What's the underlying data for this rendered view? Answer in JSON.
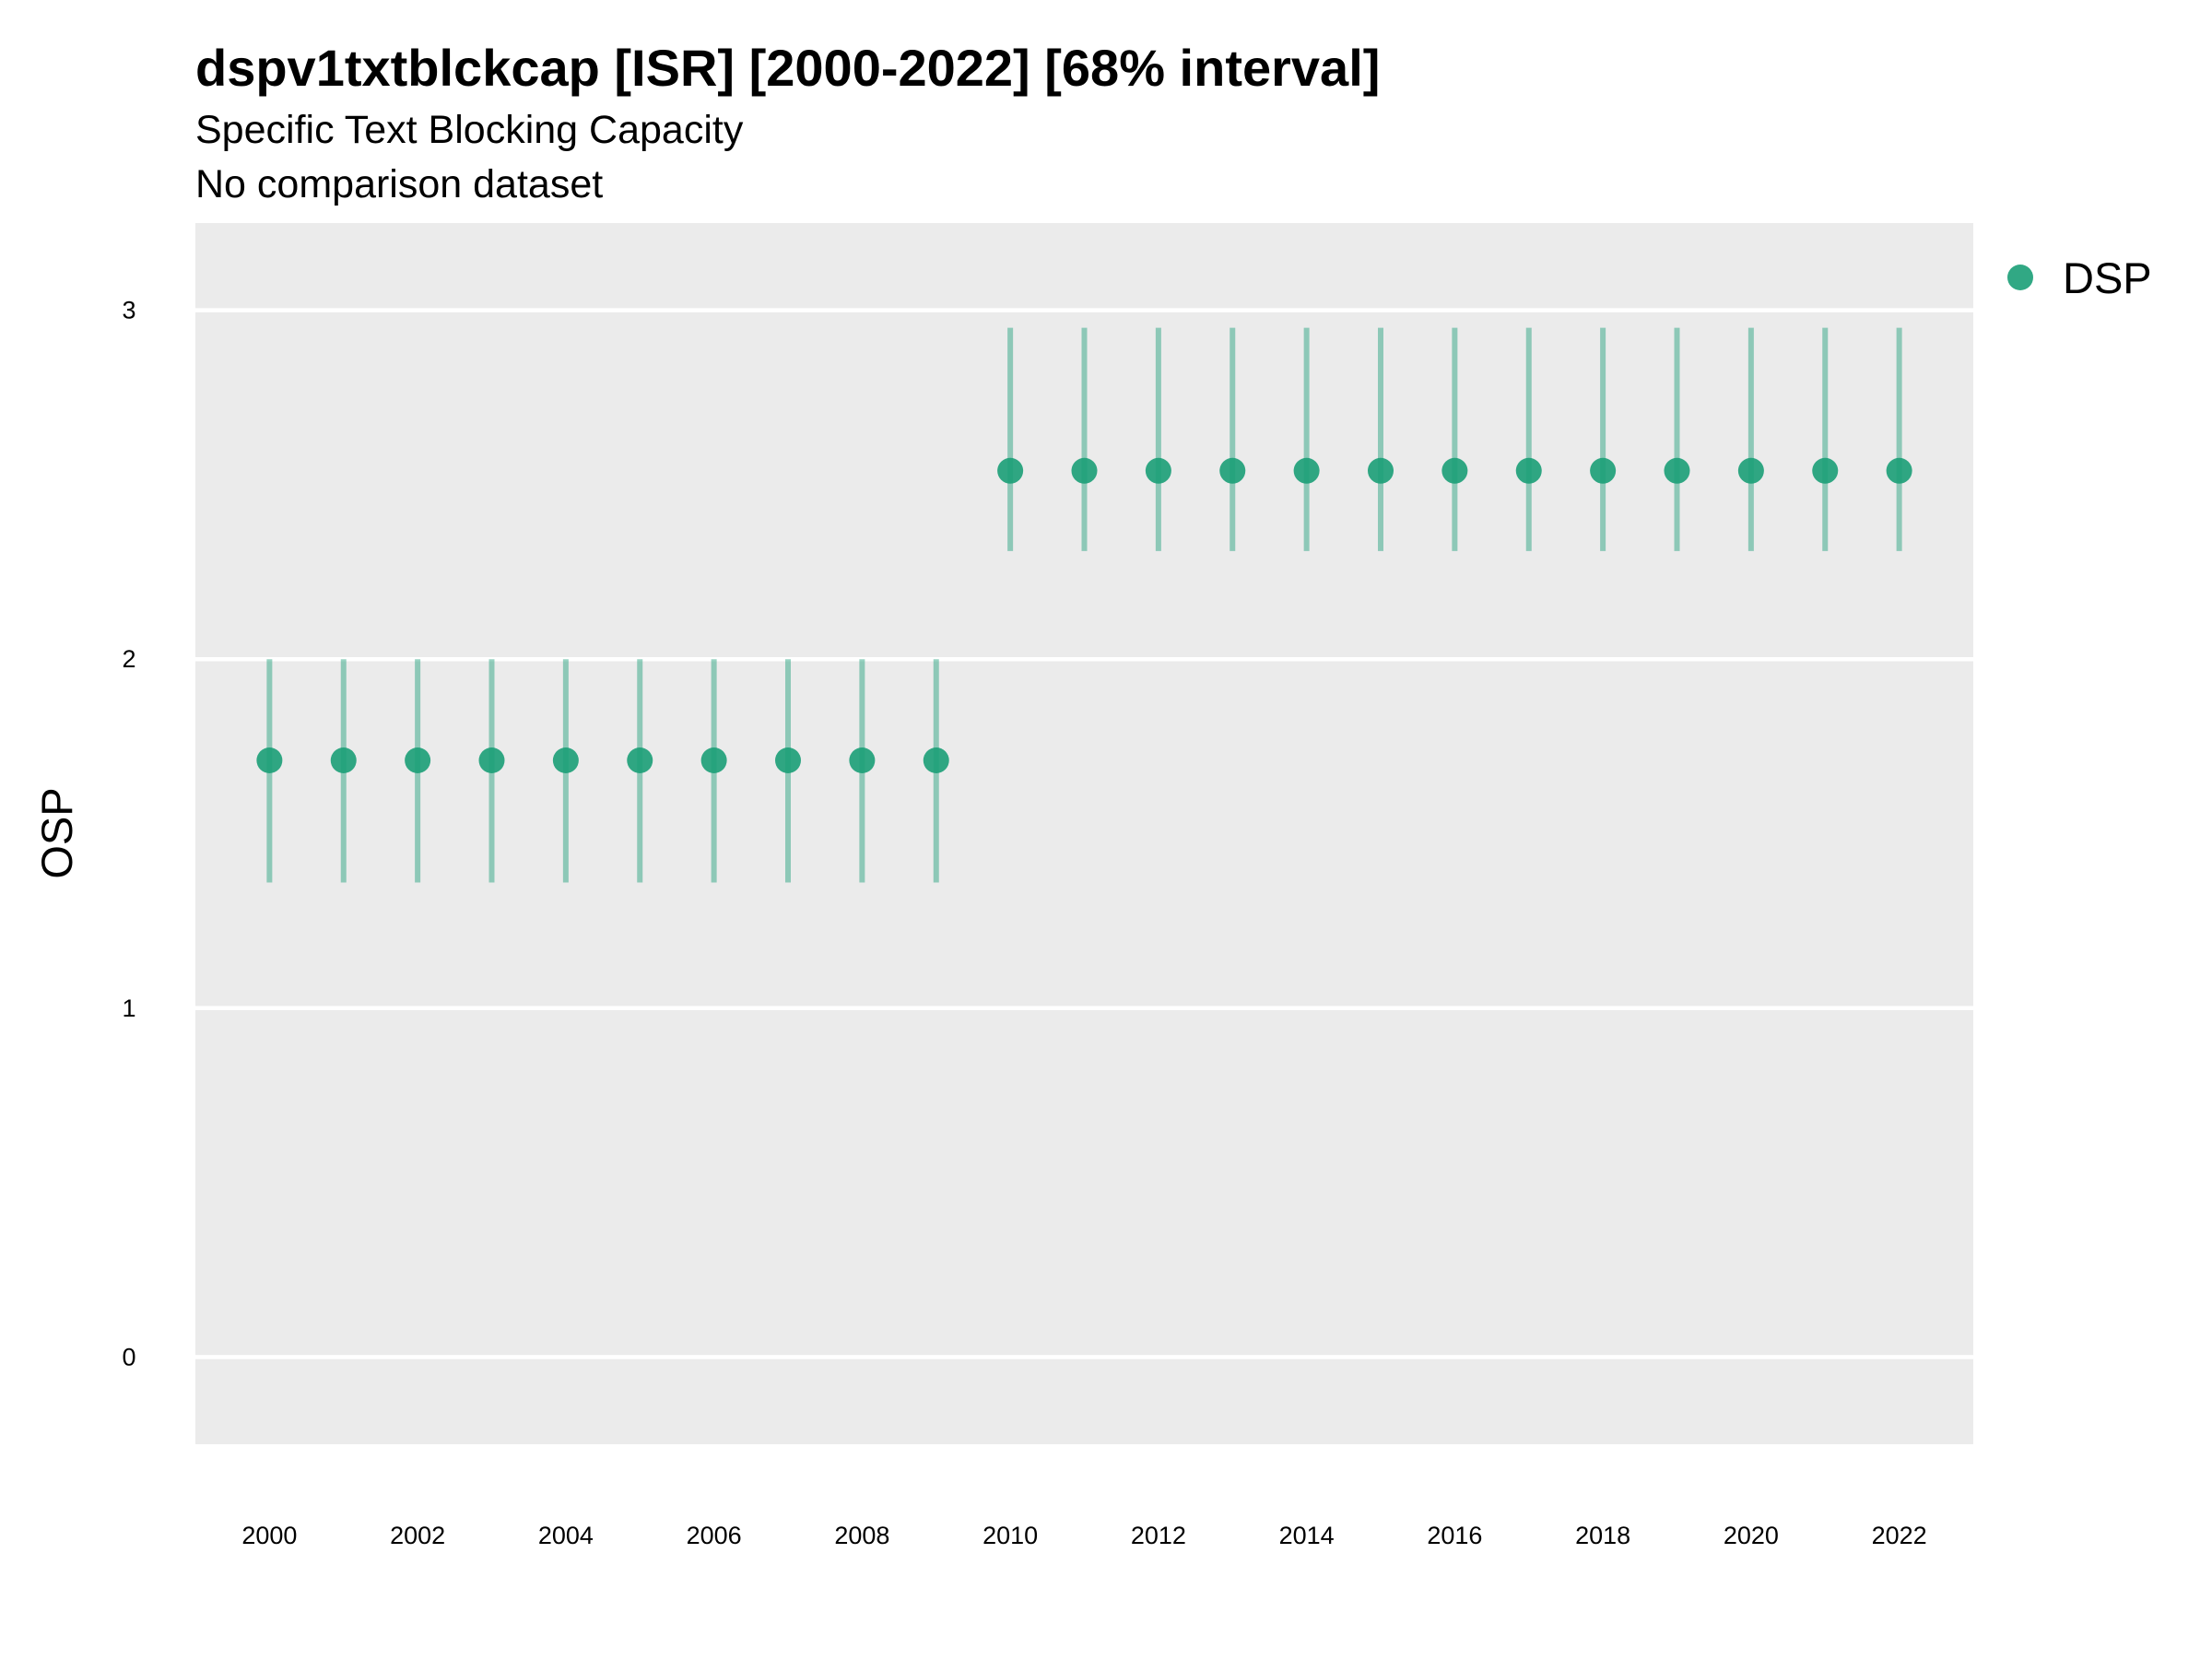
{
  "chart_data": {
    "type": "scatter",
    "title": "dspv1txtblckcap [ISR] [2000-2022] [68% interval]",
    "subtitle": "Specific Text Blocking Capacity",
    "subtitle2": "No comparison dataset",
    "xlabel": "",
    "ylabel": "OSP",
    "xlim": [
      1999,
      2023
    ],
    "ylim": [
      -0.25,
      3.25
    ],
    "x_ticks": [
      2000,
      2002,
      2004,
      2006,
      2008,
      2010,
      2012,
      2014,
      2016,
      2018,
      2020,
      2022
    ],
    "y_ticks": [
      0,
      1,
      2,
      3
    ],
    "grid": true,
    "legend": "right",
    "series": [
      {
        "name": "DSP",
        "color": "#1b9e77",
        "x": [
          2000,
          2001,
          2002,
          2003,
          2004,
          2005,
          2006,
          2007,
          2008,
          2009,
          2010,
          2011,
          2012,
          2013,
          2014,
          2015,
          2016,
          2017,
          2018,
          2019,
          2020,
          2021,
          2022
        ],
        "y": [
          1.71,
          1.71,
          1.71,
          1.71,
          1.71,
          1.71,
          1.71,
          1.71,
          1.71,
          1.71,
          2.54,
          2.54,
          2.54,
          2.54,
          2.54,
          2.54,
          2.54,
          2.54,
          2.54,
          2.54,
          2.54,
          2.54,
          2.54
        ],
        "lower": [
          1.36,
          1.36,
          1.36,
          1.36,
          1.36,
          1.36,
          1.36,
          1.36,
          1.36,
          1.36,
          2.31,
          2.31,
          2.31,
          2.31,
          2.31,
          2.31,
          2.31,
          2.31,
          2.31,
          2.31,
          2.31,
          2.31,
          2.31
        ],
        "upper": [
          2.0,
          2.0,
          2.0,
          2.0,
          2.0,
          2.0,
          2.0,
          2.0,
          2.0,
          2.0,
          2.95,
          2.95,
          2.95,
          2.95,
          2.95,
          2.95,
          2.95,
          2.95,
          2.95,
          2.95,
          2.95,
          2.95,
          2.95
        ]
      }
    ]
  }
}
